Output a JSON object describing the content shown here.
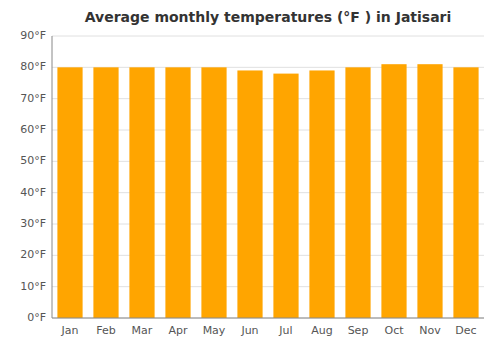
{
  "chart_data": {
    "type": "bar",
    "title": "Average monthly temperatures (°F ) in Jatisari",
    "categories": [
      "Jan",
      "Feb",
      "Mar",
      "Apr",
      "May",
      "Jun",
      "Jul",
      "Aug",
      "Sep",
      "Oct",
      "Nov",
      "Dec"
    ],
    "values": [
      80,
      80,
      80,
      80,
      80,
      79,
      78,
      79,
      80,
      81,
      81,
      80
    ],
    "color": "#FFA500",
    "ylim": [
      0,
      90
    ],
    "yticks": [
      {
        "value": 0,
        "label": "0°F"
      },
      {
        "value": 10,
        "label": "10°F"
      },
      {
        "value": 20,
        "label": "20°F"
      },
      {
        "value": 30,
        "label": "30°F"
      },
      {
        "value": 40,
        "label": "40°F"
      },
      {
        "value": 50,
        "label": "50°F"
      },
      {
        "value": 60,
        "label": "60°F"
      },
      {
        "value": 70,
        "label": "70°F"
      },
      {
        "value": 80,
        "label": "80°F"
      },
      {
        "value": 90,
        "label": "90°F"
      }
    ],
    "grid": true
  }
}
